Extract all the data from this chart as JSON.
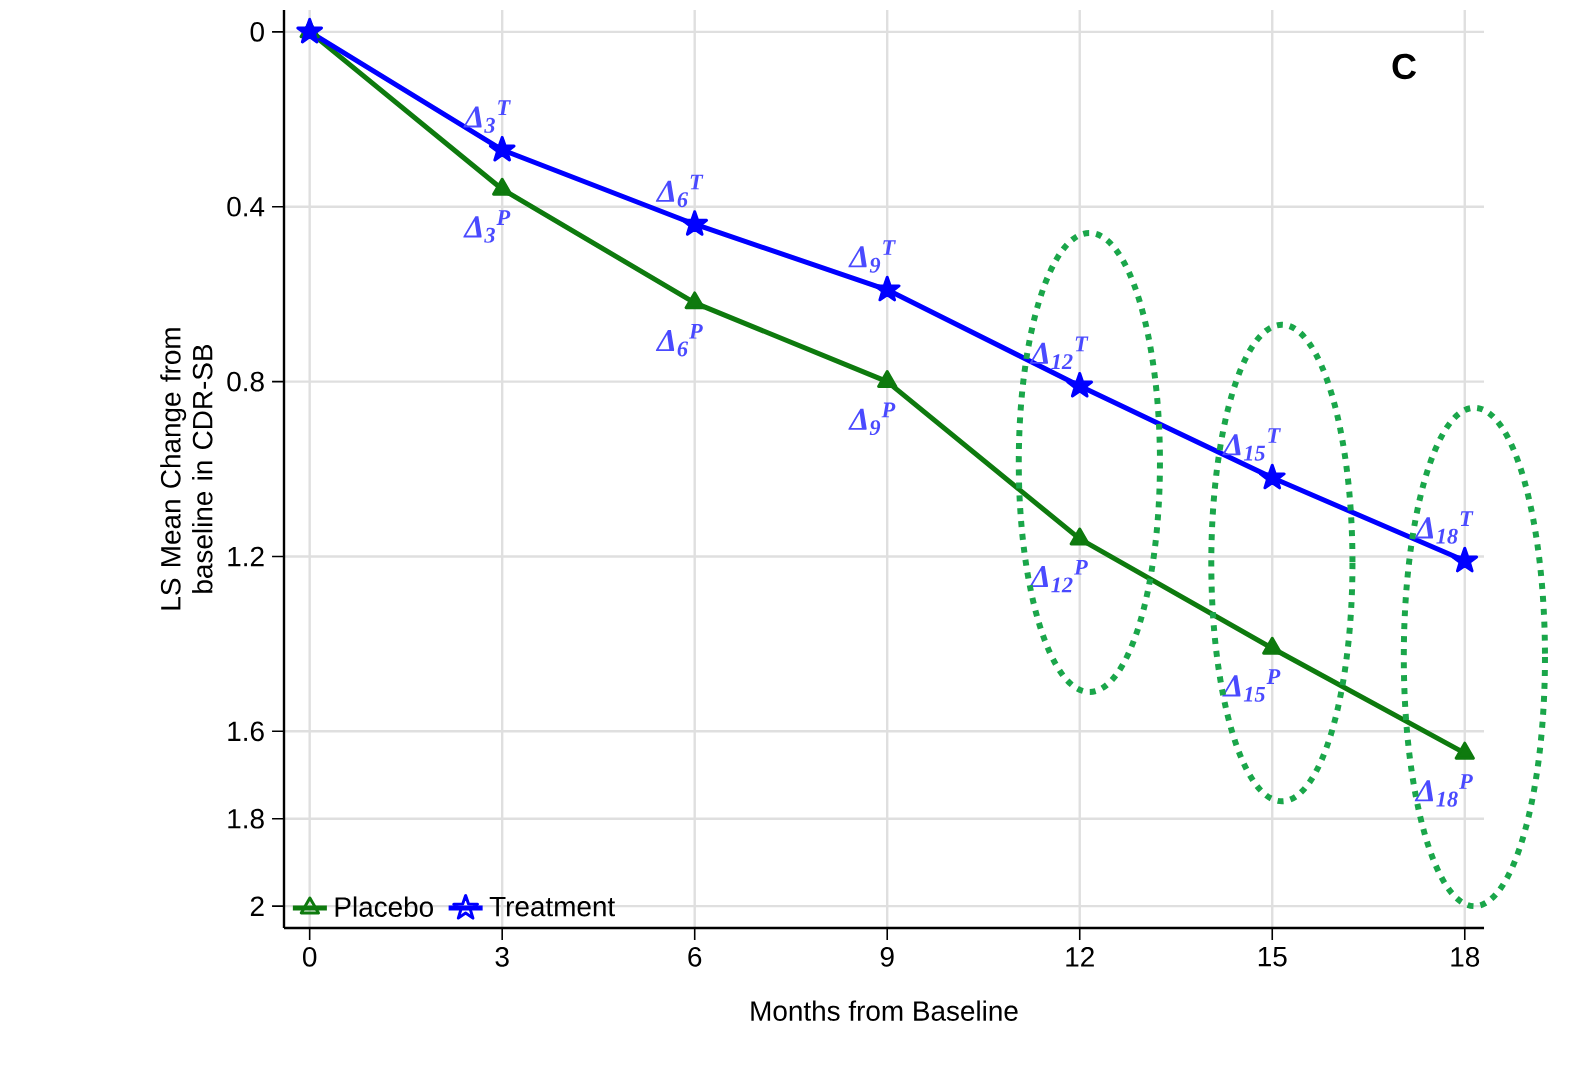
{
  "chart_data": {
    "type": "line",
    "xlabel": "Months from Baseline",
    "ylabel": "LS Mean Change from baseline in CDR-SB",
    "x": [
      0,
      3,
      6,
      9,
      12,
      15,
      18
    ],
    "series": [
      {
        "name": "Placebo",
        "color": "#0e7a0e",
        "marker": "triangle",
        "values": [
          0,
          0.36,
          0.62,
          0.8,
          1.16,
          1.41,
          1.65
        ]
      },
      {
        "name": "Treatment",
        "color": "#0000ff",
        "marker": "star",
        "values": [
          0,
          0.27,
          0.44,
          0.59,
          0.81,
          1.02,
          1.21
        ]
      }
    ],
    "xlim": [
      -0.4,
      18.3
    ],
    "xticks": [
      0,
      3,
      6,
      9,
      12,
      15,
      18
    ],
    "ylim": [
      2.05,
      -0.05
    ],
    "yticks": [
      0,
      0.4,
      0.8,
      1.2,
      1.6,
      1.8,
      2
    ],
    "grid": true,
    "legend": "bottom left",
    "line_style": "solid",
    "annotations": [
      "C",
      {
        "text": "Δ$_{3}$$^{T}$",
        "x": 3,
        "y": 0.27
      },
      {
        "text": "Δ$_{6}$$^{T}$",
        "x": 6,
        "y": 0.44
      },
      {
        "text": "Δ$_{9}$$^{T}$",
        "x": 9,
        "y": 0.59
      },
      {
        "text": "Δ$_{12}$$^{T}$",
        "x": 12,
        "y": 0.81
      },
      {
        "text": "Δ$_{15}$$^{T}$",
        "x": 15,
        "y": 1.02
      },
      {
        "text": "Δ$_{18}$$^{T}$",
        "x": 18,
        "y": 1.21
      },
      {
        "text": "Δ$_{3}$$^{P}$",
        "x": 3,
        "y": 0.36
      },
      {
        "text": "Δ$_{6}$$^{P}$",
        "x": 6,
        "y": 0.62
      },
      {
        "text": "Δ$_{9}$$^{P}$",
        "x": 9,
        "y": 0.8
      },
      {
        "text": "Δ$_{12}$$^{P}$",
        "x": 12,
        "y": 1.16
      },
      {
        "text": "Δ$_{15}$$^{P}$",
        "x": 15,
        "y": 1.41
      },
      {
        "text": "Δ$_{18}$$^{P}$",
        "x": 18,
        "y": 1.65
      }
    ]
  }
}
